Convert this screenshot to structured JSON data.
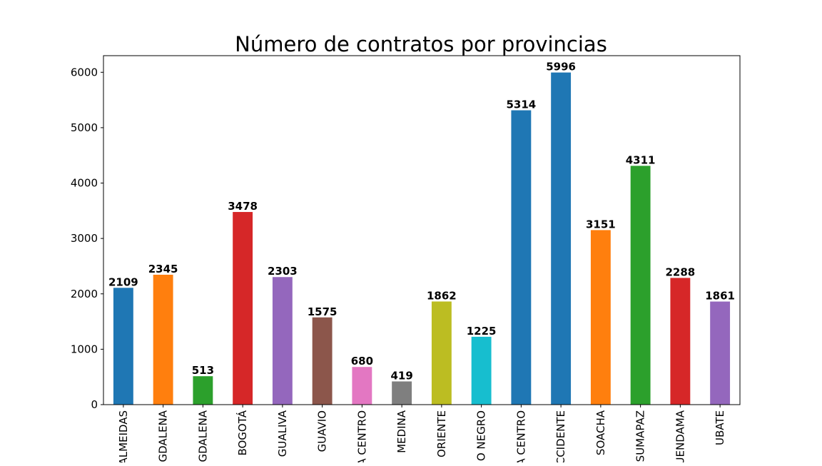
{
  "chart_data": {
    "type": "bar",
    "title": "Número de contratos por provincias",
    "xlabel": "",
    "ylabel": "",
    "ylim": [
      0,
      6300
    ],
    "yticks": [
      0,
      1000,
      2000,
      3000,
      4000,
      5000,
      6000
    ],
    "grid": false,
    "legend": "none",
    "categories": [
      "ALMEIDAS",
      "GDALENA",
      "GDALENA",
      "BOGOTÁ",
      "GUALIVA",
      "GUAVIO",
      "A CENTRO",
      "MEDINA",
      "ORIENTE",
      "O NEGRO",
      "A CENTRO",
      "CCIDENTE",
      "SOACHA",
      "SUMAPAZ",
      "UENDAMA",
      "UBATE"
    ],
    "values": [
      2109,
      2345,
      513,
      3478,
      2303,
      1575,
      680,
      419,
      1862,
      1225,
      5314,
      5996,
      3151,
      4311,
      2288,
      1861
    ],
    "colors": [
      "#1f77b4",
      "#ff7f0e",
      "#2ca02c",
      "#d62728",
      "#9467bd",
      "#8c564b",
      "#e377c2",
      "#7f7f7f",
      "#bcbd22",
      "#17becf",
      "#1f77b4",
      "#1f77b4",
      "#ff7f0e",
      "#2ca02c",
      "#d62728",
      "#9467bd"
    ]
  }
}
